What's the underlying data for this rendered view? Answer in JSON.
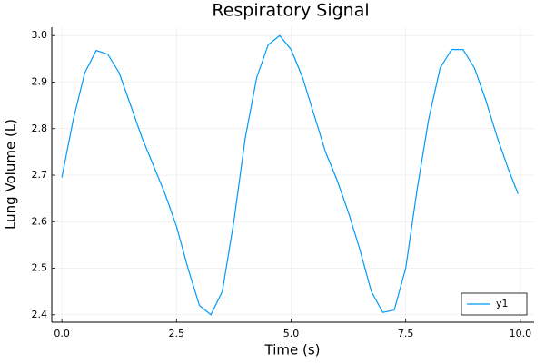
{
  "chart_data": {
    "type": "line",
    "title": "Respiratory Signal",
    "x_label": "Time (s)",
    "y_label": "Lung Volume (L)",
    "x": [
      0,
      0.25,
      0.5,
      0.75,
      1.0,
      1.25,
      1.5,
      1.75,
      2.0,
      2.25,
      2.5,
      2.75,
      3.0,
      3.25,
      3.5,
      3.75,
      4.0,
      4.25,
      4.5,
      4.75,
      5.0,
      5.25,
      5.5,
      5.75,
      6.0,
      6.25,
      6.5,
      6.75,
      7.0,
      7.25,
      7.5,
      7.75,
      8.0,
      8.25,
      8.5,
      8.75,
      9.0,
      9.25,
      9.5,
      9.75,
      9.95
    ],
    "series": [
      {
        "name": "y1",
        "color": "#009af9",
        "values": [
          2.695,
          2.82,
          2.92,
          2.968,
          2.96,
          2.92,
          2.85,
          2.78,
          2.72,
          2.66,
          2.59,
          2.5,
          2.42,
          2.4,
          2.45,
          2.6,
          2.78,
          2.91,
          2.98,
          3.0,
          2.97,
          2.91,
          2.83,
          2.75,
          2.69,
          2.62,
          2.54,
          2.45,
          2.405,
          2.41,
          2.5,
          2.67,
          2.82,
          2.93,
          2.97,
          2.97,
          2.93,
          2.86,
          2.78,
          2.71,
          2.66
        ]
      }
    ],
    "xlim": [
      -0.22,
      10.3
    ],
    "ylim": [
      2.384,
      3.018
    ],
    "xticks": [
      {
        "value": 0,
        "label": "0.0"
      },
      2.5,
      {
        "value": 5,
        "label": "5.0"
      },
      7.5,
      {
        "value": 10,
        "label": "10.0"
      }
    ],
    "yticks": [
      2.4,
      2.5,
      2.6,
      2.7,
      2.8,
      2.9,
      {
        "value": 3,
        "label": "3.0"
      }
    ],
    "grid": true,
    "legend": "bottom-right"
  }
}
